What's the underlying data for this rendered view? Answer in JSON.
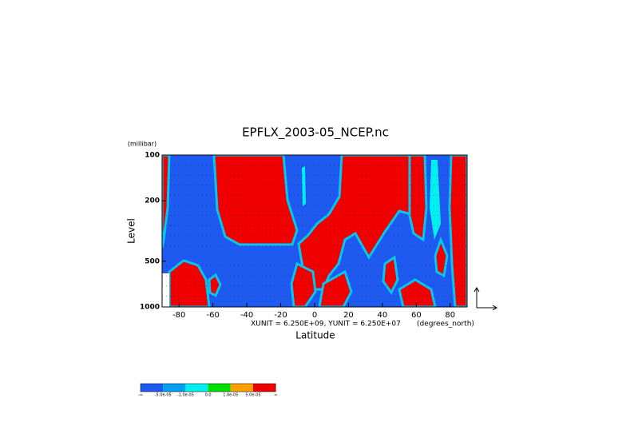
{
  "chart_data": {
    "type": "contour",
    "title": "EPFLX_2003-05_NCEP.nc",
    "x_label": "Latitude",
    "x_units": "(degrees_north)",
    "y_label": "Level",
    "y_units": "(millibar)",
    "vector_note": "XUNIT = 6.250E+09, YUNIT = 6.250E+07",
    "xlim": [
      -90,
      90
    ],
    "xticks": [
      -80,
      -60,
      -40,
      -20,
      0,
      20,
      40,
      60,
      80
    ],
    "ylim": [
      1000,
      100
    ],
    "yticks": [
      100,
      200,
      500,
      1000
    ],
    "log_y": true,
    "colorbar": {
      "colors": [
        "#1e5af0",
        "#00a0f0",
        "#00f0f0",
        "#00e000",
        "#ffa000",
        "#f00000"
      ],
      "labels": [
        "-∞",
        "-5.0e-05",
        "-1.0e-05",
        "0.0",
        "1.0e-05",
        "5.0e-05",
        "∞"
      ]
    }
  }
}
